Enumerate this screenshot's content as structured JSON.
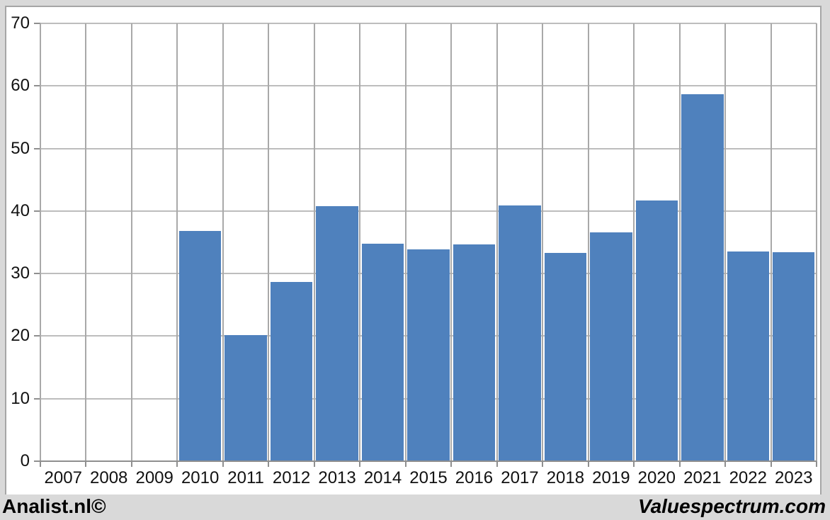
{
  "chart_data": {
    "type": "bar",
    "title": "",
    "xlabel": "",
    "ylabel": "",
    "categories": [
      "2007",
      "2008",
      "2009",
      "2010",
      "2011",
      "2012",
      "2013",
      "2014",
      "2015",
      "2016",
      "2017",
      "2018",
      "2019",
      "2020",
      "2021",
      "2022",
      "2023"
    ],
    "values": [
      null,
      null,
      null,
      36.8,
      20.2,
      28.7,
      40.8,
      34.8,
      33.9,
      34.7,
      40.9,
      33.3,
      36.6,
      41.7,
      58.7,
      33.5,
      33.4
    ],
    "ylim": [
      0,
      70
    ],
    "ytick_step": 10,
    "ytick_labels": [
      "0",
      "10",
      "20",
      "30",
      "40",
      "50",
      "60",
      "70"
    ],
    "grid": "horizontal gridlines at every 10; vertical gridlines at category boundaries",
    "legend": "none",
    "bar_color": "#4f81bd"
  },
  "colors": {
    "bar": "#4f81bd",
    "grid_horizontal": "#bdbdbd",
    "grid_vertical": "#a9a9a9",
    "axis": "#8f8f8f",
    "frame_border": "#a6a6a6",
    "page_background": "#d9d9d9",
    "plot_background": "#ffffff",
    "text": "#111111"
  },
  "footer": {
    "left_credit": "Analist.nl©",
    "right_credit": "Valuespectrum.com"
  }
}
